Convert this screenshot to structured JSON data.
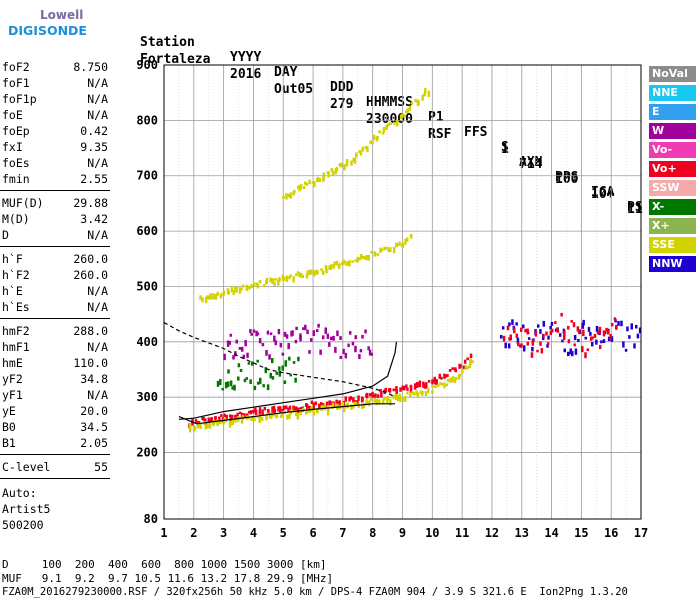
{
  "logo": {
    "line1": "Lowell",
    "line2": "DIGISONDE"
  },
  "header": {
    "row1": [
      "Station",
      "YYYY",
      "DAY",
      "DDD",
      "HHMMSS",
      "P1",
      "FFS",
      "S",
      "AXN",
      "PPS",
      "IGA",
      "PS"
    ],
    "row2": [
      "Fortaleza",
      "2016",
      "Out05",
      "279",
      "230000",
      "RSF",
      "1",
      "714",
      "100",
      "10+",
      "11"
    ]
  },
  "params": [
    {
      "name": "foF2",
      "value": "8.750"
    },
    {
      "name": "foF1",
      "value": "N/A"
    },
    {
      "name": "foF1p",
      "value": "N/A"
    },
    {
      "name": "foE",
      "value": "N/A"
    },
    {
      "name": "foEp",
      "value": "0.42"
    },
    {
      "name": "fxI",
      "value": "9.35"
    },
    {
      "name": "foEs",
      "value": "N/A"
    },
    {
      "name": "fmin",
      "value": "2.55"
    },
    {
      "name": "MUF(D)",
      "value": "29.88"
    },
    {
      "name": "M(D)",
      "value": "3.42"
    },
    {
      "name": "D",
      "value": "N/A"
    },
    {
      "name": "h`F",
      "value": "260.0"
    },
    {
      "name": "h`F2",
      "value": "260.0"
    },
    {
      "name": "h`E",
      "value": "N/A"
    },
    {
      "name": "h`Es",
      "value": "N/A"
    },
    {
      "name": "hmF2",
      "value": "288.0"
    },
    {
      "name": "hmF1",
      "value": "N/A"
    },
    {
      "name": "hmE",
      "value": "110.0"
    },
    {
      "name": "yF2",
      "value": "34.8"
    },
    {
      "name": "yF1",
      "value": "N/A"
    },
    {
      "name": "yE",
      "value": "20.0"
    },
    {
      "name": "B0",
      "value": "34.5"
    },
    {
      "name": "B1",
      "value": "2.05"
    },
    {
      "name": "C-level",
      "value": "55"
    }
  ],
  "auto": {
    "line1": "Auto:",
    "line2": "Artist5",
    "line3": "500200"
  },
  "legend": [
    {
      "label": "NoVal",
      "color": "#8c8c8c"
    },
    {
      "label": "NNE",
      "color": "#19c8f0"
    },
    {
      "label": "E",
      "color": "#32a0f0"
    },
    {
      "label": "W",
      "color": "#a0009b"
    },
    {
      "label": "Vo-",
      "color": "#f03cb4"
    },
    {
      "label": "Vo+",
      "color": "#f0001e"
    },
    {
      "label": "SSW",
      "color": "#f5aaaa"
    },
    {
      "label": "X-",
      "color": "#007800"
    },
    {
      "label": "X+",
      "color": "#8cb450"
    },
    {
      "label": "SSE",
      "color": "#d2d200"
    },
    {
      "label": "NNW",
      "color": "#1e00d2"
    }
  ],
  "footer": {
    "d_row": "D     100  200  400  600  800 1000 1500 3000 [km]",
    "muf_row": "MUF   9.1  9.2  9.7 10.5 11.6 13.2 17.8 29.9 [MHz]",
    "file_row": "FZA0M_2016279230000.RSF / 320fx256h 50 kHz 5.0 km / DPS-4 FZA0M 904 / 3.9 S 321.6 E  Ion2Png 1.3.20"
  },
  "chart_data": {
    "type": "scatter",
    "title": "",
    "xlabel": "",
    "ylabel": "",
    "xlim": [
      1,
      17
    ],
    "ylim": [
      80,
      900
    ],
    "xticks": [
      1,
      2,
      3,
      4,
      5,
      6,
      7,
      8,
      9,
      10,
      11,
      12,
      13,
      14,
      15,
      16,
      17
    ],
    "yticks": [
      80,
      200,
      300,
      400,
      500,
      600,
      700,
      800,
      900
    ],
    "grid": true,
    "curves": [
      {
        "name": "profile",
        "points": [
          [
            1.5,
            265
          ],
          [
            2.1,
            252
          ],
          [
            3,
            258
          ],
          [
            4,
            265
          ],
          [
            5,
            272
          ],
          [
            6,
            278
          ],
          [
            7,
            283
          ],
          [
            8,
            288
          ],
          [
            8.5,
            288
          ],
          [
            8.75,
            288
          ]
        ]
      },
      {
        "name": "trace-fit",
        "points": [
          [
            1.5,
            260
          ],
          [
            2,
            262
          ],
          [
            2.5,
            268
          ],
          [
            3,
            274
          ],
          [
            4,
            282
          ],
          [
            5,
            290
          ],
          [
            6,
            298
          ],
          [
            7,
            306
          ],
          [
            8,
            320
          ],
          [
            8.5,
            338
          ],
          [
            8.75,
            380
          ],
          [
            8.8,
            400
          ]
        ]
      },
      {
        "name": "topside",
        "points": [
          [
            1.0,
            435
          ],
          [
            1.5,
            420
          ],
          [
            2,
            408
          ],
          [
            2.5,
            398
          ],
          [
            3,
            388
          ],
          [
            3.5,
            374
          ],
          [
            4,
            362
          ],
          [
            4.5,
            350
          ],
          [
            5,
            344
          ],
          [
            5.5,
            340
          ],
          [
            6,
            336
          ],
          [
            6.5,
            332
          ],
          [
            7,
            328
          ],
          [
            7.5,
            322
          ],
          [
            8,
            316
          ],
          [
            8.5,
            308
          ],
          [
            8.75,
            300
          ]
        ]
      }
    ],
    "traces": [
      {
        "name": "o-trace F2",
        "color": "#f0001e",
        "points": [
          [
            1.8,
            255
          ],
          [
            2.5,
            265
          ],
          [
            3.5,
            272
          ],
          [
            4.5,
            280
          ],
          [
            5.5,
            286
          ],
          [
            6.5,
            293
          ],
          [
            7.5,
            300
          ],
          [
            8.5,
            315
          ],
          [
            9,
            320
          ],
          [
            9.5,
            326
          ],
          [
            10,
            334
          ],
          [
            10.5,
            345
          ],
          [
            11,
            362
          ],
          [
            11.3,
            390
          ]
        ]
      },
      {
        "name": "o-trace F2 (SSE)",
        "color": "#d2d200",
        "points": [
          [
            1.8,
            250
          ],
          [
            3,
            258
          ],
          [
            4,
            266
          ],
          [
            5,
            272
          ],
          [
            6,
            280
          ],
          [
            7,
            288
          ],
          [
            8,
            296
          ],
          [
            9,
            305
          ],
          [
            10,
            318
          ],
          [
            10.5,
            330
          ],
          [
            11,
            350
          ],
          [
            11.4,
            375
          ]
        ]
      },
      {
        "name": "second hop",
        "color": "#d2d200",
        "points": [
          [
            2.2,
            480
          ],
          [
            3,
            493
          ],
          [
            4,
            505
          ],
          [
            5,
            518
          ],
          [
            6,
            530
          ],
          [
            7,
            545
          ],
          [
            8,
            562
          ],
          [
            9,
            580
          ],
          [
            9.3,
            595
          ]
        ]
      },
      {
        "name": "third hop",
        "color": "#d2d200",
        "points": [
          [
            5,
            665
          ],
          [
            6,
            693
          ],
          [
            7,
            725
          ],
          [
            7.5,
            742
          ],
          [
            8,
            770
          ],
          [
            8.6,
            795
          ],
          [
            9.3,
            830
          ],
          [
            9.9,
            862
          ]
        ]
      },
      {
        "name": "spread F",
        "color": "#a0009b",
        "points": [
          [
            3,
            390
          ],
          [
            4,
            400
          ],
          [
            5,
            405
          ],
          [
            6,
            410
          ],
          [
            7,
            398
          ],
          [
            8,
            400
          ]
        ]
      },
      {
        "name": "spread F (X-)",
        "color": "#007800",
        "points": [
          [
            2.8,
            335
          ],
          [
            3.5,
            342
          ],
          [
            4.5,
            348
          ],
          [
            5.5,
            352
          ]
        ]
      },
      {
        "name": "high spread",
        "color": "#1e00d2",
        "points": [
          [
            12.3,
            415
          ],
          [
            13,
            420
          ],
          [
            13.5,
            410
          ],
          [
            14,
            420
          ],
          [
            14.5,
            405
          ],
          [
            15,
            415
          ],
          [
            16,
            420
          ],
          [
            16.5,
            410
          ],
          [
            17,
            415
          ]
        ]
      },
      {
        "name": "high spread (Vo+)",
        "color": "#f0001e",
        "points": [
          [
            12.4,
            430
          ],
          [
            13.2,
            400
          ],
          [
            14.2,
            430
          ],
          [
            15.2,
            400
          ],
          [
            16.2,
            430
          ]
        ]
      }
    ]
  }
}
